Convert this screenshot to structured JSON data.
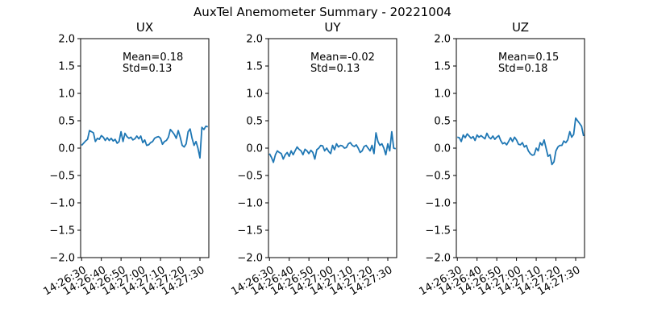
{
  "figure_title": "AuxTel Anemometer Summary - 20221004",
  "line_color": "#1f77b4",
  "chart_data": [
    {
      "type": "line",
      "title": "UX",
      "xlabel": "",
      "ylabel": "",
      "ylim": [
        -2.0,
        2.0
      ],
      "yticks": [
        "2.0",
        "1.5",
        "1.0",
        "0.5",
        "0.0",
        "−0.5",
        "−1.0",
        "−1.5",
        "−2.0"
      ],
      "ytick_values": [
        2.0,
        1.5,
        1.0,
        0.5,
        0.0,
        -0.5,
        -1.0,
        -1.5,
        -2.0
      ],
      "xticks": [
        "14:26:30",
        "14:26:40",
        "14:26:50",
        "14:27:00",
        "14:27:10",
        "14:27:20",
        "14:27:30"
      ],
      "xrange_seconds": [
        -0.5,
        64.5
      ],
      "annotation": {
        "mean": "Mean=0.18",
        "std": "Std=0.13"
      },
      "series": [
        {
          "x": [
            0,
            2,
            3,
            4,
            5,
            6,
            7,
            8,
            9,
            10,
            11,
            12,
            13,
            14,
            15,
            16,
            17,
            18,
            19,
            20,
            21,
            22,
            23,
            24,
            25,
            26,
            27,
            28,
            29,
            30,
            31,
            32,
            33,
            34,
            35,
            36,
            37,
            38,
            39,
            40,
            41,
            42,
            43,
            44,
            45,
            46,
            47,
            48,
            49,
            50,
            51,
            52,
            53,
            54,
            55,
            56,
            57,
            58,
            59,
            60,
            61,
            62,
            63,
            64
          ],
          "values": [
            0.05,
            0.13,
            0.16,
            0.32,
            0.3,
            0.28,
            0.12,
            0.18,
            0.16,
            0.23,
            0.2,
            0.14,
            0.19,
            0.14,
            0.18,
            0.13,
            0.16,
            0.09,
            0.12,
            0.3,
            0.12,
            0.27,
            0.21,
            0.18,
            0.2,
            0.15,
            0.17,
            0.22,
            0.17,
            0.22,
            0.1,
            0.15,
            0.05,
            0.06,
            0.1,
            0.12,
            0.18,
            0.2,
            0.21,
            0.18,
            0.07,
            0.12,
            0.14,
            0.2,
            0.34,
            0.3,
            0.25,
            0.18,
            0.32,
            0.2,
            0.05,
            0.02,
            0.08,
            0.3,
            0.35,
            0.18,
            0.05,
            0.12,
            0.0,
            -0.18,
            0.38,
            0.34,
            0.4,
            0.39
          ]
        }
      ]
    },
    {
      "type": "line",
      "title": "UY",
      "xlabel": "",
      "ylabel": "",
      "ylim": [
        -2.0,
        2.0
      ],
      "yticks": [
        "2.0",
        "1.5",
        "1.0",
        "0.5",
        "0.0",
        "−0.5",
        "−1.0",
        "−1.5",
        "−2.0"
      ],
      "ytick_values": [
        2.0,
        1.5,
        1.0,
        0.5,
        0.0,
        -0.5,
        -1.0,
        -1.5,
        -2.0
      ],
      "xticks": [
        "14:26:30",
        "14:26:40",
        "14:26:50",
        "14:27:00",
        "14:27:10",
        "14:27:20",
        "14:27:30"
      ],
      "xrange_seconds": [
        -0.5,
        64.5
      ],
      "annotation": {
        "mean": "Mean=-0.02",
        "std": "Std=0.13"
      },
      "series": [
        {
          "x": [
            0,
            1,
            2,
            3,
            4,
            5,
            6,
            7,
            8,
            9,
            10,
            11,
            12,
            13,
            14,
            15,
            16,
            17,
            18,
            19,
            20,
            21,
            22,
            23,
            24,
            25,
            26,
            27,
            28,
            29,
            30,
            31,
            32,
            33,
            34,
            35,
            36,
            37,
            38,
            39,
            40,
            41,
            42,
            43,
            44,
            45,
            46,
            47,
            48,
            49,
            50,
            51,
            52,
            53,
            54,
            55,
            56,
            57,
            58,
            59,
            60,
            61,
            62,
            63,
            64
          ],
          "values": [
            -0.1,
            -0.17,
            -0.26,
            -0.12,
            -0.05,
            -0.08,
            -0.1,
            -0.2,
            -0.12,
            -0.08,
            -0.15,
            -0.05,
            -0.12,
            -0.05,
            0.02,
            -0.02,
            -0.05,
            -0.12,
            -0.02,
            -0.05,
            -0.1,
            -0.04,
            -0.08,
            -0.2,
            -0.03,
            0.0,
            0.05,
            0.04,
            -0.05,
            0.0,
            -0.06,
            -0.1,
            0.05,
            -0.03,
            0.08,
            0.02,
            0.05,
            0.04,
            0.0,
            0.01,
            0.08,
            0.1,
            0.05,
            0.03,
            0.06,
            0.0,
            -0.08,
            -0.05,
            0.03,
            0.05,
            0.0,
            -0.05,
            0.05,
            -0.1,
            0.28,
            0.12,
            0.05,
            0.08,
            0.0,
            -0.12,
            0.08,
            -0.05,
            0.3,
            0.0,
            -0.01
          ]
        }
      ]
    },
    {
      "type": "line",
      "title": "UZ",
      "xlabel": "",
      "ylabel": "",
      "ylim": [
        -2.0,
        2.0
      ],
      "yticks": [
        "2.0",
        "1.5",
        "1.0",
        "0.5",
        "0.0",
        "−0.5",
        "−1.0",
        "−1.5",
        "−2.0"
      ],
      "ytick_values": [
        2.0,
        1.5,
        1.0,
        0.5,
        0.0,
        -0.5,
        -1.0,
        -1.5,
        -2.0
      ],
      "xticks": [
        "14:26:30",
        "14:26:40",
        "14:26:50",
        "14:27:00",
        "14:27:10",
        "14:27:20",
        "14:27:30"
      ],
      "xrange_seconds": [
        -0.5,
        64.5
      ],
      "annotation": {
        "mean": "Mean=0.15",
        "std": "Std=0.18"
      },
      "series": [
        {
          "x": [
            0,
            1,
            2,
            3,
            4,
            5,
            6,
            7,
            8,
            9,
            10,
            11,
            12,
            13,
            14,
            15,
            16,
            17,
            18,
            19,
            20,
            21,
            22,
            23,
            24,
            25,
            26,
            27,
            28,
            29,
            30,
            31,
            32,
            33,
            34,
            35,
            36,
            37,
            38,
            39,
            40,
            41,
            42,
            43,
            44,
            45,
            46,
            47,
            48,
            49,
            50,
            51,
            52,
            53,
            54,
            55,
            56,
            57,
            58,
            59,
            60,
            61,
            62,
            63,
            64
          ],
          "values": [
            0.2,
            0.19,
            0.12,
            0.24,
            0.19,
            0.26,
            0.22,
            0.18,
            0.21,
            0.14,
            0.24,
            0.2,
            0.23,
            0.2,
            0.17,
            0.27,
            0.2,
            0.17,
            0.22,
            0.16,
            0.2,
            0.23,
            0.14,
            0.08,
            0.1,
            0.06,
            0.12,
            0.19,
            0.12,
            0.2,
            0.15,
            0.07,
            0.06,
            0.1,
            0.02,
            0.05,
            -0.05,
            -0.1,
            -0.13,
            -0.12,
            0.0,
            -0.05,
            0.1,
            0.05,
            0.15,
            0.0,
            -0.15,
            -0.12,
            -0.3,
            -0.25,
            -0.05,
            0.02,
            0.05,
            0.05,
            0.13,
            0.1,
            0.15,
            0.3,
            0.2,
            0.25,
            0.55,
            0.5,
            0.45,
            0.4,
            0.22
          ]
        }
      ]
    }
  ]
}
